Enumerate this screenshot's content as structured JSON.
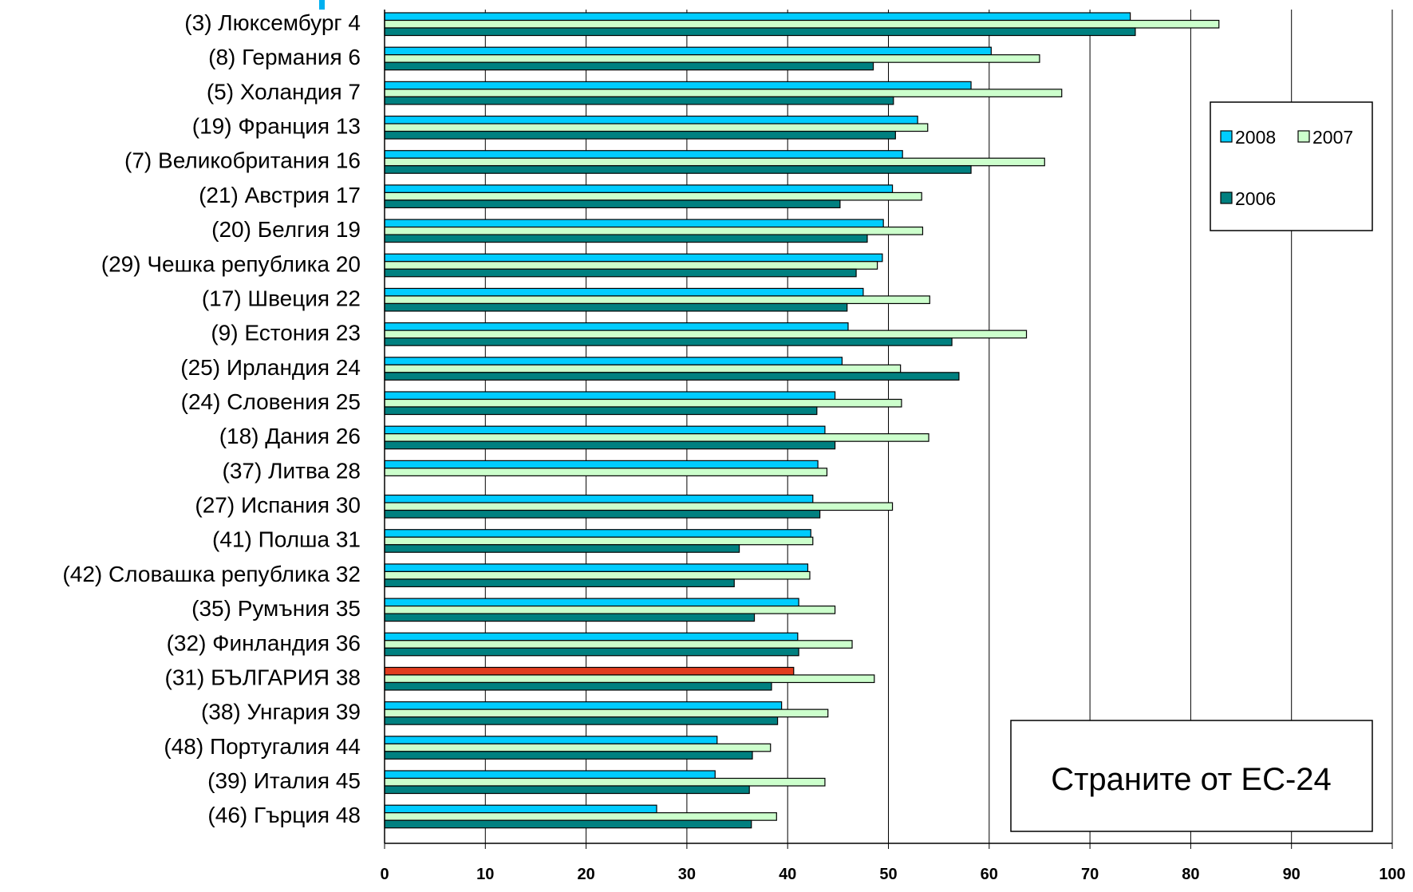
{
  "chart_data": {
    "type": "bar",
    "orientation": "horizontal",
    "categories": [
      "(3) Люксембург 4",
      "(8) Германия 6",
      "(5) Холандия 7",
      "(19) Франция 13",
      "(7) Великобритания 16",
      "(21) Австрия 17",
      "(20) Белгия 19",
      "(29) Чешка република 20",
      "(17) Швеция 22",
      "(9) Естония 23",
      "(25) Ирландия 24",
      "(24) Словения 25",
      "(18) Дания 26",
      "(37) Литва 28",
      "(27) Испания 30",
      "(41) Полша 31",
      "(42) Словашка република 32",
      "(35) Румъния 35",
      "(32) Финландия 36",
      "(31) БЪЛГАРИЯ 38",
      "(38) Унгария 39",
      "(48) Португалия 44",
      "(39) Италия 45",
      "(46) Гърция 48"
    ],
    "series": [
      {
        "name": "2008",
        "color": "#00ccff",
        "values": [
          74.0,
          60.2,
          58.2,
          52.9,
          51.4,
          50.4,
          49.5,
          49.4,
          47.5,
          46.0,
          45.4,
          44.7,
          43.7,
          43.0,
          42.5,
          42.3,
          42.0,
          41.1,
          41.0,
          40.6,
          39.4,
          33.0,
          32.8,
          27.0
        ],
        "highlight": {
          "index": 19,
          "color": "#e03c1e"
        }
      },
      {
        "name": "2007",
        "color": "#ccffcc",
        "values": [
          82.8,
          65.0,
          67.2,
          53.9,
          65.5,
          53.3,
          53.4,
          48.9,
          54.1,
          63.7,
          51.2,
          51.3,
          54.0,
          43.9,
          50.4,
          42.5,
          42.2,
          44.7,
          46.4,
          48.6,
          44.0,
          38.3,
          43.7,
          38.9
        ]
      },
      {
        "name": "2006",
        "color": "#008080",
        "values": [
          74.5,
          48.5,
          50.5,
          50.7,
          58.2,
          45.2,
          47.9,
          46.8,
          45.9,
          56.3,
          57.0,
          42.9,
          44.7,
          null,
          43.2,
          35.2,
          34.7,
          36.7,
          41.1,
          38.4,
          39.0,
          36.5,
          36.2,
          36.4
        ]
      }
    ],
    "x_axis": {
      "min": 0,
      "max": 100,
      "ticks": [
        "0",
        "10",
        "20",
        "30",
        "40",
        "50",
        "60",
        "70",
        "80",
        "90",
        "100"
      ]
    },
    "xlabel": "",
    "ylabel": "",
    "grid": "vertical",
    "legend": {
      "placement": "right",
      "entries": [
        "2008",
        "2007",
        "2006"
      ]
    },
    "annotation": "Страните от ЕС-24"
  }
}
